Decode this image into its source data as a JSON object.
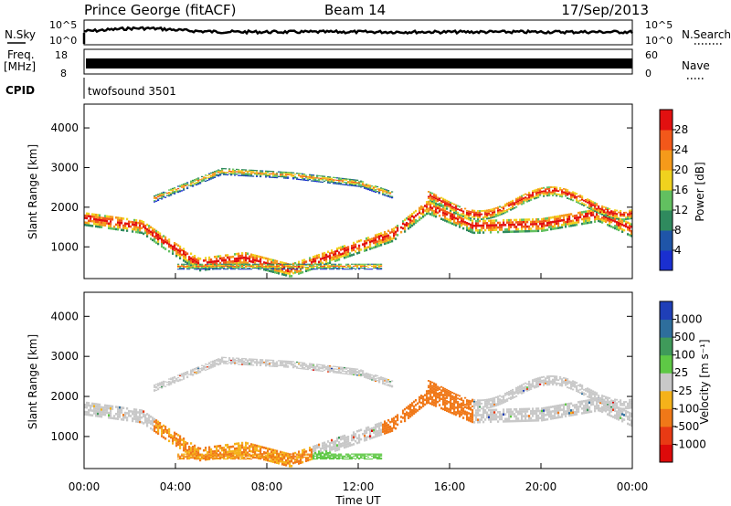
{
  "header": {
    "station": "Prince George (fitACF)",
    "beam": "Beam 14",
    "date": "17/Sep/2013"
  },
  "noise_panel": {
    "left_label": "N.Sky",
    "right_label": "N.Search",
    "top_tick": "10^5",
    "bottom_tick": "10^0",
    "right_top_tick": "10^5",
    "right_bottom_tick": "10^0"
  },
  "freq_panel": {
    "left_label_top": "Freq.",
    "left_label_unit": "[MHz]",
    "left_top_tick": "18",
    "left_bottom_tick": "8",
    "right_label": "Nave",
    "right_top_tick": "60",
    "right_bottom_tick": "0"
  },
  "cpid_panel": {
    "label": "CPID",
    "program": "twofsound 3501"
  },
  "axes": {
    "y_label": "Slant Range [km]",
    "x_label": "Time UT",
    "x_ticks": [
      "00:00",
      "04:00",
      "08:00",
      "12:00",
      "16:00",
      "20:00",
      "00:00"
    ],
    "y_ticks": [
      "1000",
      "2000",
      "3000",
      "4000"
    ],
    "ylim": [
      200,
      4600
    ],
    "xlim_hours": [
      0,
      24
    ]
  },
  "power_scale": {
    "label": "Power [dB]",
    "ticks": [
      "4",
      "8",
      "12",
      "16",
      "20",
      "24",
      "28"
    ],
    "colors": [
      "#1a2fd0",
      "#1f55a8",
      "#2f8a5e",
      "#62c060",
      "#f0d21e",
      "#f59a1a",
      "#f2581a",
      "#e21010"
    ]
  },
  "velocity_scale": {
    "label": "Velocity [m s⁻¹]",
    "ticks": [
      "1000",
      "500",
      "100",
      "25",
      "-25",
      "-100",
      "-500",
      "-1000"
    ],
    "colors": [
      "#1f3fb8",
      "#2e6e9c",
      "#3f9a5a",
      "#5ec845",
      "#c8c8c8",
      "#f5b21a",
      "#f07818",
      "#e83a14",
      "#dd0a0a"
    ]
  },
  "chart_data": {
    "type": "heatmap",
    "title": "Prince George (fitACF)",
    "xlabel": "Time UT",
    "ylabel": "Slant Range [km]",
    "ylim": [
      200,
      4600
    ],
    "xlim": [
      0,
      24
    ],
    "power_band_centers": [
      {
        "t": 0.0,
        "r": 1700
      },
      {
        "t": 2.5,
        "r": 1500
      },
      {
        "t": 3.5,
        "r": 1100
      },
      {
        "t": 5.0,
        "r": 550
      },
      {
        "t": 7.0,
        "r": 700
      },
      {
        "t": 9.0,
        "r": 400
      },
      {
        "t": 13.5,
        "r": 1300
      },
      {
        "t": 15.0,
        "r": 2000
      },
      {
        "t": 17.0,
        "r": 1500
      },
      {
        "t": 20.0,
        "r": 1550
      },
      {
        "t": 22.5,
        "r": 1800
      },
      {
        "t": 24.0,
        "r": 1400
      }
    ],
    "upper_arc_ranges": [
      {
        "t": 3.0,
        "r": 2200
      },
      {
        "t": 6.0,
        "r": 2900
      },
      {
        "t": 9.0,
        "r": 2800
      },
      {
        "t": 12.0,
        "r": 2600
      },
      {
        "t": 13.5,
        "r": 2300
      }
    ]
  }
}
